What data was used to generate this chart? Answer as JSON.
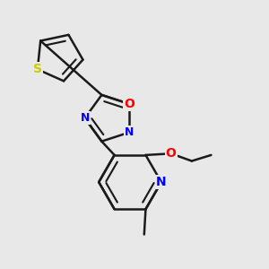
{
  "background_color": "#e8e8e8",
  "bond_color": "#1a1a1a",
  "bond_width": 1.8,
  "atom_colors": {
    "S": "#cccc00",
    "O": "#ff0000",
    "N": "#0000ff",
    "C": "#1a1a1a"
  }
}
